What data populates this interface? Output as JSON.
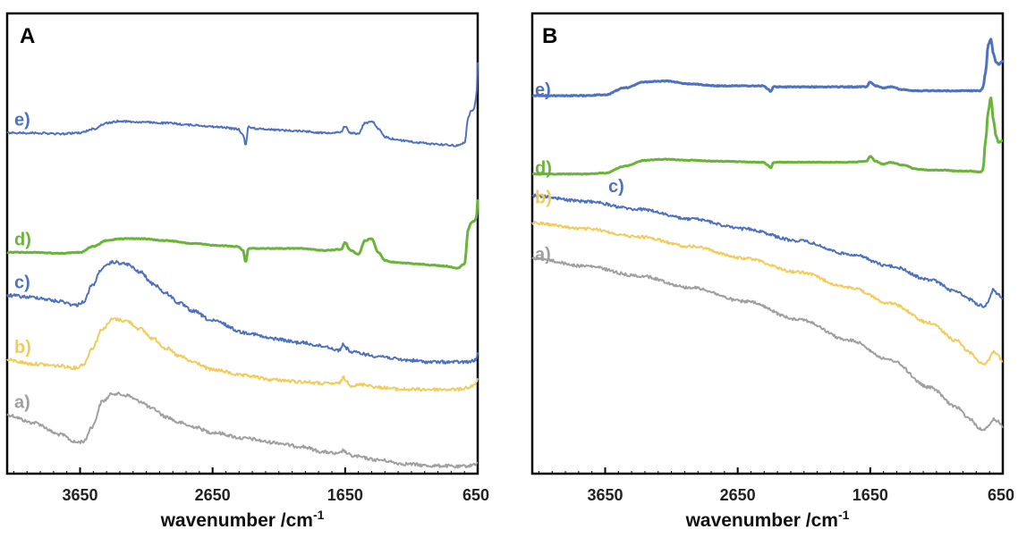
{
  "chart_data": [
    {
      "type": "line",
      "panel_label": "A",
      "xlabel": "wavenumber /cm",
      "xlabel_superscript": "-1",
      "xlim": [
        4200,
        650
      ],
      "x_reversed": true,
      "x_ticks": [
        3650,
        2650,
        1650,
        650
      ],
      "x_tick_labels": [
        "3650",
        "2650",
        "1650",
        "650"
      ],
      "y_axis": "arbitrary units, no ticks",
      "grid": false,
      "series": [
        {
          "name": "a)",
          "color": "#a0a0a0",
          "noise": 1.8,
          "x": [
            4200,
            4000,
            3800,
            3680,
            3620,
            3560,
            3480,
            3400,
            3300,
            3200,
            3100,
            3000,
            2900,
            2800,
            2650,
            2400,
            2200,
            2000,
            1800,
            1700,
            1660,
            1640,
            1600,
            1400,
            1200,
            1000,
            900,
            800,
            720,
            660,
            650
          ],
          "y": [
            0.3,
            0.26,
            0.2,
            0.16,
            0.165,
            0.24,
            0.37,
            0.41,
            0.4,
            0.37,
            0.33,
            0.29,
            0.26,
            0.24,
            0.21,
            0.18,
            0.16,
            0.14,
            0.11,
            0.1,
            0.12,
            0.105,
            0.09,
            0.07,
            0.05,
            0.04,
            0.04,
            0.035,
            0.04,
            0.05,
            0.06
          ]
        },
        {
          "name": "b)",
          "color": "#f2cc5a",
          "noise": 1.8,
          "x": [
            4200,
            4000,
            3800,
            3680,
            3620,
            3560,
            3480,
            3400,
            3300,
            3200,
            3100,
            3000,
            2900,
            2800,
            2650,
            2400,
            2200,
            2000,
            1800,
            1700,
            1660,
            1640,
            1600,
            1500,
            1400,
            1200,
            1000,
            800,
            720,
            660,
            650
          ],
          "y": [
            0.58,
            0.56,
            0.55,
            0.54,
            0.56,
            0.64,
            0.74,
            0.79,
            0.78,
            0.74,
            0.69,
            0.64,
            0.6,
            0.57,
            0.53,
            0.5,
            0.48,
            0.47,
            0.46,
            0.46,
            0.49,
            0.47,
            0.45,
            0.455,
            0.44,
            0.43,
            0.43,
            0.43,
            0.44,
            0.46,
            0.48
          ]
        },
        {
          "name": "c)",
          "color": "#4f72be",
          "noise": 1.8,
          "x": [
            4200,
            4000,
            3800,
            3680,
            3620,
            3560,
            3480,
            3400,
            3300,
            3200,
            3100,
            3000,
            2900,
            2800,
            2650,
            2400,
            2200,
            2000,
            1800,
            1700,
            1660,
            1640,
            1600,
            1400,
            1200,
            1000,
            800,
            720,
            660,
            650
          ],
          "y": [
            0.91,
            0.9,
            0.88,
            0.86,
            0.88,
            0.96,
            1.05,
            1.08,
            1.07,
            1.03,
            0.97,
            0.92,
            0.87,
            0.83,
            0.78,
            0.72,
            0.69,
            0.67,
            0.65,
            0.63,
            0.66,
            0.64,
            0.62,
            0.6,
            0.58,
            0.57,
            0.57,
            0.57,
            0.58,
            0.62
          ]
        },
        {
          "name": "d)",
          "color": "#6ab43a",
          "noise": 0.4,
          "x": [
            4200,
            4000,
            3800,
            3650,
            3550,
            3450,
            3350,
            3200,
            3000,
            2800,
            2600,
            2460,
            2420,
            2400,
            2380,
            2300,
            2000,
            1800,
            1680,
            1650,
            1610,
            1550,
            1500,
            1450,
            1400,
            1350,
            1300,
            1200,
            1100,
            1000,
            900,
            800,
            750,
            720,
            700,
            680,
            660,
            650
          ],
          "y": [
            1.13,
            1.13,
            1.125,
            1.13,
            1.16,
            1.19,
            1.2,
            1.2,
            1.19,
            1.175,
            1.165,
            1.16,
            1.14,
            1.08,
            1.15,
            1.15,
            1.15,
            1.14,
            1.145,
            1.18,
            1.14,
            1.12,
            1.19,
            1.2,
            1.13,
            1.09,
            1.08,
            1.075,
            1.07,
            1.065,
            1.06,
            1.05,
            1.07,
            1.25,
            1.28,
            1.29,
            1.3,
            1.4
          ]
        },
        {
          "name": "e)",
          "color": "#4f72be",
          "noise": 1.0,
          "x": [
            4200,
            4000,
            3800,
            3650,
            3550,
            3450,
            3350,
            3200,
            3000,
            2800,
            2600,
            2460,
            2420,
            2400,
            2380,
            2300,
            2000,
            1800,
            1680,
            1650,
            1610,
            1550,
            1500,
            1450,
            1400,
            1350,
            1300,
            1200,
            1100,
            1000,
            900,
            800,
            750,
            720,
            700,
            680,
            660,
            650
          ],
          "y": [
            1.74,
            1.74,
            1.735,
            1.74,
            1.76,
            1.79,
            1.8,
            1.795,
            1.79,
            1.78,
            1.77,
            1.76,
            1.73,
            1.68,
            1.77,
            1.76,
            1.75,
            1.74,
            1.745,
            1.775,
            1.74,
            1.735,
            1.79,
            1.8,
            1.76,
            1.72,
            1.71,
            1.7,
            1.69,
            1.685,
            1.68,
            1.675,
            1.69,
            1.82,
            1.85,
            1.86,
            1.92,
            2.1
          ]
        }
      ]
    },
    {
      "type": "line",
      "panel_label": "B",
      "xlabel": "wavenumber /cm",
      "xlabel_superscript": "-1",
      "xlim": [
        4200,
        650
      ],
      "x_reversed": true,
      "x_ticks": [
        3650,
        2650,
        1650,
        650
      ],
      "x_tick_labels": [
        "3650",
        "2650",
        "1650",
        "650"
      ],
      "y_axis": "arbitrary units, no ticks",
      "grid": false,
      "series": [
        {
          "name": "a)",
          "color": "#a0a0a0",
          "noise": 1.6,
          "x": [
            4200,
            3800,
            3400,
            3000,
            2600,
            2200,
            1800,
            1500,
            1200,
            1000,
            900,
            820,
            790,
            760,
            720,
            690,
            660,
            650
          ],
          "y": [
            1.1,
            1.06,
            1.01,
            0.95,
            0.88,
            0.79,
            0.68,
            0.58,
            0.44,
            0.34,
            0.28,
            0.23,
            0.22,
            0.24,
            0.28,
            0.27,
            0.25,
            0.24
          ]
        },
        {
          "name": "b)",
          "color": "#f2cc5a",
          "noise": 1.6,
          "x": [
            4200,
            3800,
            3400,
            3000,
            2600,
            2200,
            1800,
            1500,
            1200,
            1000,
            900,
            820,
            790,
            760,
            720,
            690,
            660,
            650
          ],
          "y": [
            1.28,
            1.25,
            1.21,
            1.16,
            1.1,
            1.03,
            0.95,
            0.87,
            0.77,
            0.68,
            0.62,
            0.57,
            0.56,
            0.58,
            0.62,
            0.61,
            0.58,
            0.57
          ]
        },
        {
          "name": "c)",
          "color": "#4f72be",
          "noise": 1.6,
          "x": [
            4200,
            3800,
            3400,
            3000,
            2600,
            2200,
            1800,
            1500,
            1200,
            1000,
            900,
            820,
            790,
            760,
            720,
            690,
            660,
            650
          ],
          "y": [
            1.42,
            1.39,
            1.35,
            1.3,
            1.25,
            1.19,
            1.12,
            1.06,
            0.99,
            0.93,
            0.89,
            0.86,
            0.85,
            0.88,
            0.94,
            0.92,
            0.9,
            0.89
          ]
        },
        {
          "name": "d)",
          "color": "#6ab43a",
          "noise": 0.4,
          "x": [
            4200,
            4000,
            3800,
            3650,
            3500,
            3350,
            3200,
            3000,
            2800,
            2460,
            2420,
            2400,
            2380,
            2300,
            2000,
            1800,
            1680,
            1650,
            1610,
            1550,
            1500,
            1400,
            1300,
            1200,
            1100,
            1000,
            900,
            820,
            800,
            780,
            760,
            740,
            720,
            700,
            680,
            660,
            650
          ],
          "y": [
            1.53,
            1.53,
            1.53,
            1.535,
            1.57,
            1.6,
            1.605,
            1.6,
            1.595,
            1.59,
            1.575,
            1.56,
            1.59,
            1.59,
            1.59,
            1.59,
            1.595,
            1.62,
            1.595,
            1.58,
            1.59,
            1.575,
            1.555,
            1.55,
            1.55,
            1.545,
            1.545,
            1.54,
            1.55,
            1.7,
            1.85,
            1.92,
            1.8,
            1.72,
            1.69,
            1.7,
            1.7
          ]
        },
        {
          "name": "e)",
          "color": "#4f72be",
          "noise": 0.5,
          "x": [
            4200,
            4000,
            3800,
            3650,
            3500,
            3350,
            3200,
            3000,
            2800,
            2460,
            2420,
            2400,
            2380,
            2300,
            2000,
            1800,
            1680,
            1650,
            1610,
            1550,
            1500,
            1400,
            1300,
            1200,
            1100,
            1000,
            900,
            820,
            800,
            780,
            760,
            740,
            720,
            700,
            680,
            660,
            650
          ],
          "y": [
            1.93,
            1.93,
            1.93,
            1.935,
            1.97,
            2.0,
            2.005,
            1.99,
            1.98,
            1.98,
            1.965,
            1.95,
            1.975,
            1.975,
            1.975,
            1.975,
            1.975,
            2.0,
            1.98,
            1.97,
            1.975,
            1.96,
            1.955,
            1.955,
            1.955,
            1.955,
            1.955,
            1.955,
            1.97,
            2.05,
            2.19,
            2.22,
            2.14,
            2.1,
            2.09,
            2.1,
            2.11
          ]
        }
      ]
    }
  ]
}
